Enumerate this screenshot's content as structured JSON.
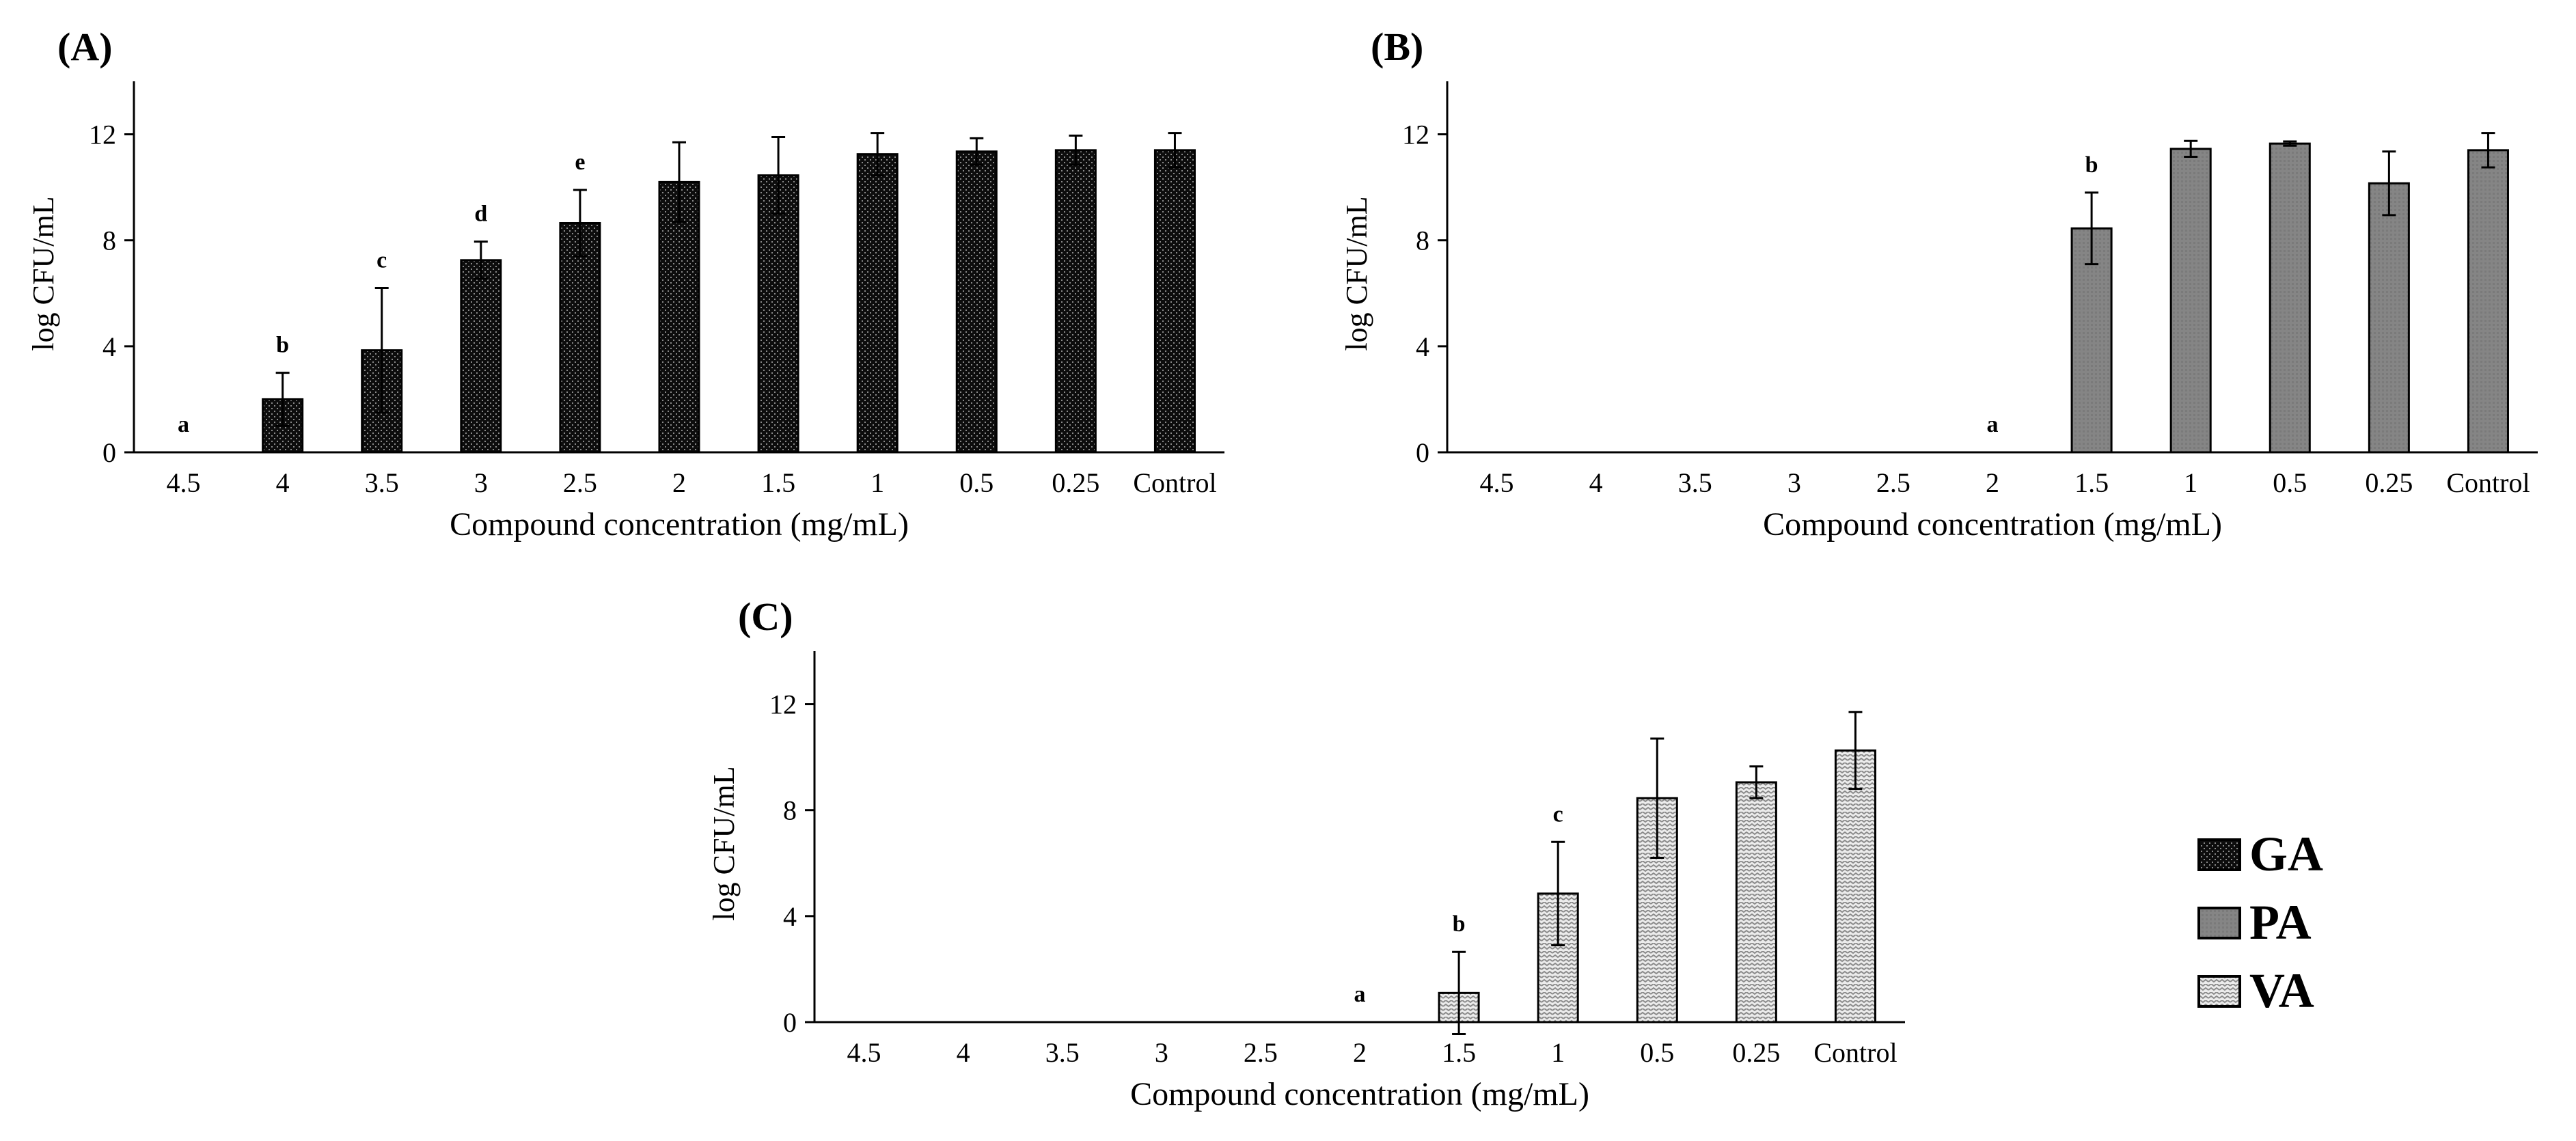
{
  "chart_data": [
    {
      "type": "bar",
      "panel": "(A)",
      "xlabel": "Compound concentration (mg/mL)",
      "ylabel": "log CFU/mL",
      "ylim": [
        0,
        14
      ],
      "yticks": [
        "0",
        "4",
        "8",
        "12"
      ],
      "categories": [
        "4.5",
        "4",
        "3.5",
        "3",
        "2.5",
        "2",
        "1.5",
        "1",
        "0.5",
        "0.25",
        "Control"
      ],
      "series": [
        {
          "name": "GA",
          "values": [
            0,
            2.0,
            3.85,
            7.25,
            8.65,
            10.2,
            10.45,
            11.25,
            11.35,
            11.4,
            11.4
          ],
          "errors": [
            0,
            1.0,
            2.35,
            0.7,
            1.25,
            1.5,
            1.45,
            0.8,
            0.5,
            0.55,
            0.65
          ],
          "labels": [
            "a",
            "b",
            "c",
            "d",
            "e",
            "",
            "",
            "",
            "",
            "",
            ""
          ]
        }
      ]
    },
    {
      "type": "bar",
      "panel": "(B)",
      "xlabel": "Compound concentration (mg/mL)",
      "ylabel": "log CFU/mL",
      "ylim": [
        0,
        14
      ],
      "yticks": [
        "0",
        "4",
        "8",
        "12"
      ],
      "categories": [
        "4.5",
        "4",
        "3.5",
        "3",
        "2.5",
        "2",
        "1.5",
        "1",
        "0.5",
        "0.25",
        "Control"
      ],
      "series": [
        {
          "name": "PA",
          "values": [
            0,
            0,
            0,
            0,
            0,
            0,
            8.45,
            11.45,
            11.65,
            10.15,
            11.4
          ],
          "errors": [
            0,
            0,
            0,
            0,
            0,
            0,
            1.35,
            0.3,
            0.08,
            1.2,
            0.65
          ],
          "labels": [
            "",
            "",
            "",
            "",
            "",
            "a",
            "b",
            "",
            "",
            "",
            ""
          ]
        }
      ]
    },
    {
      "type": "bar",
      "panel": "(C)",
      "xlabel": "Compound concentration (mg/mL)",
      "ylabel": "log CFU/mL",
      "ylim": [
        0,
        14
      ],
      "yticks": [
        "0",
        "4",
        "8",
        "12"
      ],
      "categories": [
        "4.5",
        "4",
        "3.5",
        "3",
        "2.5",
        "2",
        "1.5",
        "1",
        "0.5",
        "0.25",
        "Control"
      ],
      "series": [
        {
          "name": "VA",
          "values": [
            0,
            0,
            0,
            0,
            0,
            0,
            1.1,
            4.85,
            8.45,
            9.05,
            10.25
          ],
          "errors": [
            0,
            0,
            0,
            0,
            0,
            0,
            1.55,
            1.95,
            2.25,
            0.6,
            1.45
          ],
          "labels": [
            "",
            "",
            "",
            "",
            "",
            "a",
            "b",
            "c",
            "",
            "",
            ""
          ]
        }
      ]
    }
  ],
  "legend": [
    {
      "name": "GA",
      "pattern": "dots"
    },
    {
      "name": "PA",
      "pattern": "grey"
    },
    {
      "name": "VA",
      "pattern": "zigzag"
    }
  ]
}
